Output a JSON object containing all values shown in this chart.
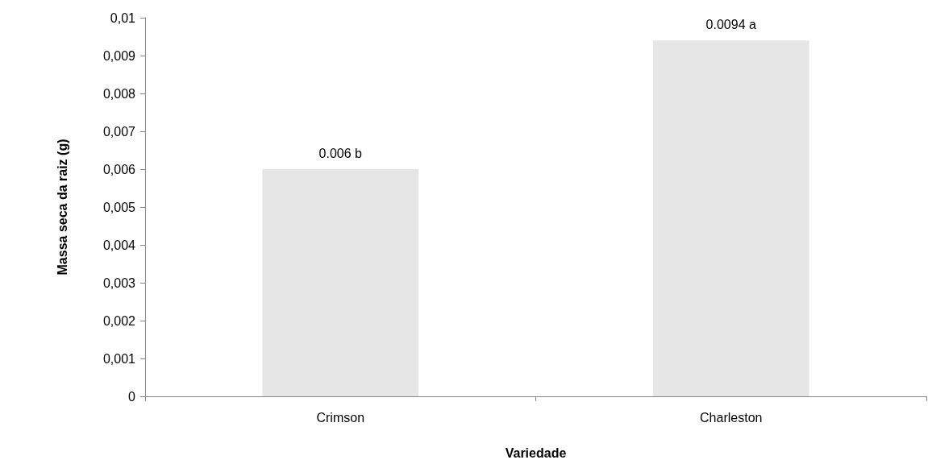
{
  "chart_data": {
    "type": "bar",
    "xlabel": "Variedade",
    "ylabel": "Massa seca da raiz (g)",
    "categories": [
      "Crimson",
      "Charleston"
    ],
    "values": [
      0.006,
      0.0094
    ],
    "color": "#e6e6e6",
    "value_labels": [
      "0.006 b",
      "0.0094 a"
    ],
    "ylim": [
      0,
      0.01
    ],
    "yticks": [
      {
        "value": 0,
        "label": "0"
      },
      {
        "value": 0.001,
        "label": "0,001"
      },
      {
        "value": 0.002,
        "label": "0,002"
      },
      {
        "value": 0.003,
        "label": "0,003"
      },
      {
        "value": 0.004,
        "label": "0,004"
      },
      {
        "value": 0.005,
        "label": "0,005"
      },
      {
        "value": 0.006,
        "label": "0,006"
      },
      {
        "value": 0.007,
        "label": "0,007"
      },
      {
        "value": 0.008,
        "label": "0,008"
      },
      {
        "value": 0.009,
        "label": "0,009"
      },
      {
        "value": 0.01,
        "label": "0,01"
      }
    ],
    "grid": false
  }
}
